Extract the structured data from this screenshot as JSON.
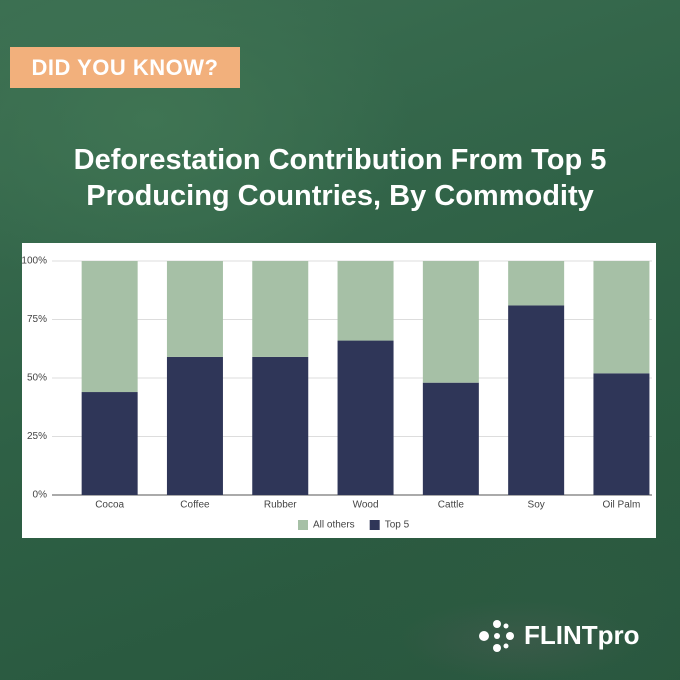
{
  "badge": "DID YOU KNOW?",
  "brand": "FLINTpro",
  "chart_data": {
    "type": "stacked_bar",
    "title": "Deforestation Contribution From Top 5 Producing Countries, By Commodity",
    "categories": [
      "Cocoa",
      "Coffee",
      "Rubber",
      "Wood",
      "Cattle",
      "Soy",
      "Oil Palm"
    ],
    "series": [
      {
        "name": "All others",
        "color": "#a6c0a6",
        "values": [
          56,
          41,
          41,
          34,
          52,
          19,
          48
        ]
      },
      {
        "name": "Top 5",
        "color": "#2f3658",
        "values": [
          44,
          59,
          59,
          66,
          48,
          81,
          52
        ]
      }
    ],
    "ylim": [
      0,
      100
    ],
    "yticks": [
      {
        "value": 0,
        "label": "0%"
      },
      {
        "value": 25,
        "label": "25%"
      },
      {
        "value": 50,
        "label": "50%"
      },
      {
        "value": 75,
        "label": "75%"
      },
      {
        "value": 100,
        "label": "100%"
      }
    ],
    "grid": true,
    "legend": "bottom"
  }
}
